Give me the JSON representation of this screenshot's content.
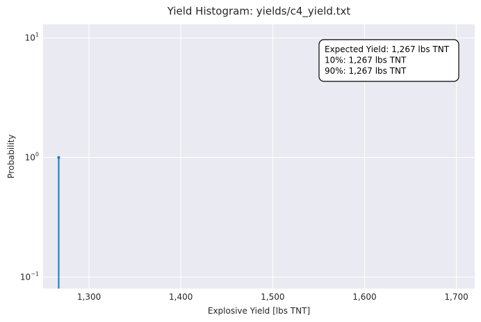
{
  "chart_data": {
    "type": "bar",
    "title": "Yield Histogram: yields/c4_yield.txt",
    "xlabel": "Explosive Yield [lbs TNT]",
    "ylabel": "Probability",
    "y_scale": "log",
    "xlim": [
      1250,
      1720
    ],
    "ylim": [
      0.08,
      13
    ],
    "x_ticks": [
      {
        "value": 1300,
        "label": "1,300"
      },
      {
        "value": 1400,
        "label": "1,400"
      },
      {
        "value": 1500,
        "label": "1,500"
      },
      {
        "value": 1600,
        "label": "1,600"
      },
      {
        "value": 1700,
        "label": "1,700"
      }
    ],
    "y_ticks": [
      {
        "value": 0.1,
        "base": "10",
        "exp": "−1"
      },
      {
        "value": 1,
        "base": "10",
        "exp": "0"
      },
      {
        "value": 10,
        "base": "10",
        "exp": "1"
      }
    ],
    "bins": [
      {
        "x": 1267,
        "value": 1.0
      }
    ],
    "grid": true,
    "background_color": "#eaeaf2",
    "series_color": "#1f77b4",
    "annotation": {
      "lines": [
        "Expected Yield: 1,267 lbs TNT",
        "10%: 1,267 lbs TNT",
        "90%: 1,267 lbs TNT"
      ],
      "position": "top-right"
    }
  }
}
